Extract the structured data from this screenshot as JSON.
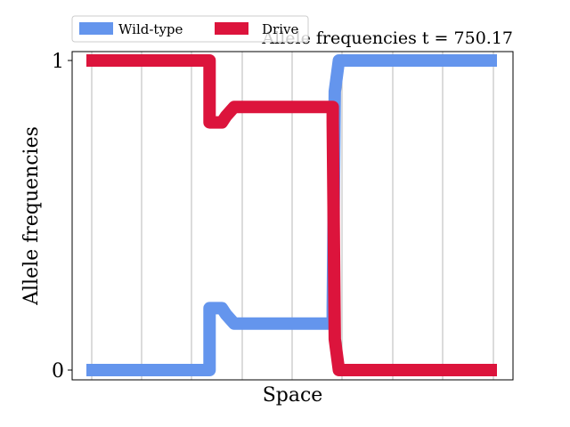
{
  "chart_data": {
    "type": "line",
    "title": "Allele frequencies t = 750.17",
    "xlabel": "Space",
    "ylabel": "Allele frequencies",
    "xlim": [
      0,
      1
    ],
    "ylim": [
      -0.03,
      1.03
    ],
    "yticks": [
      0,
      1
    ],
    "ytick_labels": [
      "0",
      "1"
    ],
    "grid": "vertical",
    "legend": {
      "placement": "top-left",
      "columns": 2
    },
    "series": [
      {
        "name": "Wild-type",
        "color": "#6495ED",
        "x": [
          0.0,
          0.3,
          0.3,
          0.33,
          0.34,
          0.36,
          0.36,
          0.6,
          0.6,
          0.605,
          0.615,
          1.0
        ],
        "y": [
          0.0,
          0.0,
          0.2,
          0.2,
          0.18,
          0.15,
          0.15,
          0.15,
          0.2,
          0.9,
          1.0,
          1.0
        ]
      },
      {
        "name": "Drive",
        "color": "#DC143C",
        "x": [
          0.0,
          0.3,
          0.3,
          0.33,
          0.34,
          0.36,
          0.36,
          0.6,
          0.6,
          0.605,
          0.615,
          1.0
        ],
        "y": [
          1.0,
          1.0,
          0.8,
          0.8,
          0.82,
          0.85,
          0.85,
          0.85,
          0.8,
          0.1,
          0.0,
          0.0
        ]
      }
    ]
  }
}
